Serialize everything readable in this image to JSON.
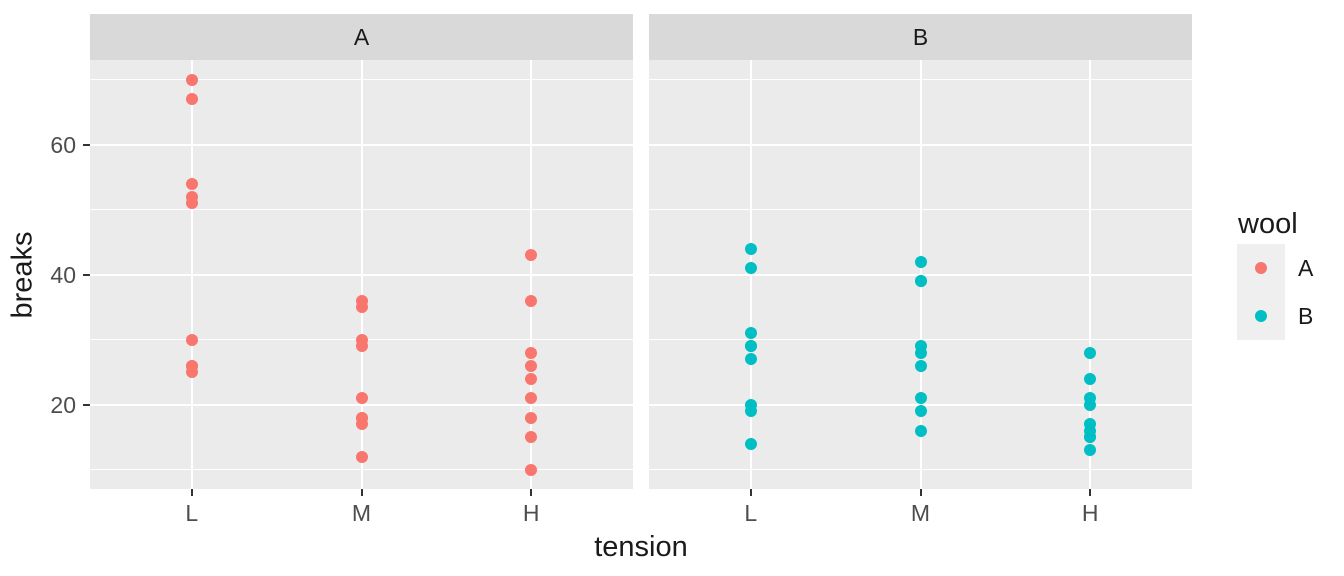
{
  "chart_data": {
    "type": "scatter",
    "title": "",
    "xlabel": "tension",
    "ylabel": "breaks",
    "x_categories": [
      "L",
      "M",
      "H"
    ],
    "y_major_ticks": [
      20,
      40,
      60
    ],
    "y_minor_ticks": [
      10,
      30,
      50,
      70
    ],
    "ylim": [
      7,
      73
    ],
    "grid": true,
    "facets": [
      {
        "label": "A",
        "color": "#F8766D",
        "series": {
          "L": [
            26,
            30,
            54,
            25,
            70,
            52,
            51,
            26,
            67
          ],
          "M": [
            18,
            21,
            29,
            17,
            12,
            18,
            35,
            30,
            36
          ],
          "H": [
            36,
            21,
            24,
            18,
            10,
            43,
            28,
            15,
            26
          ]
        }
      },
      {
        "label": "B",
        "color": "#00BFC4",
        "series": {
          "L": [
            27,
            14,
            29,
            19,
            29,
            31,
            41,
            20,
            44
          ],
          "M": [
            42,
            26,
            19,
            16,
            39,
            28,
            21,
            39,
            29
          ],
          "H": [
            20,
            21,
            24,
            17,
            13,
            15,
            15,
            16,
            28
          ]
        }
      }
    ],
    "legend": {
      "title": "wool",
      "position": "right",
      "entries": [
        {
          "label": "A",
          "color": "#F8766D"
        },
        {
          "label": "B",
          "color": "#00BFC4"
        }
      ]
    },
    "style": {
      "panel_bg": "#EBEBEB",
      "strip_bg": "#D9D9D9",
      "grid_color": "#FFFFFF",
      "legend_key_bg": "#EFEFEF",
      "tick_color": "#333333",
      "tick_label_color": "#4D4D4D",
      "text_color": "#1A1A1A"
    }
  }
}
